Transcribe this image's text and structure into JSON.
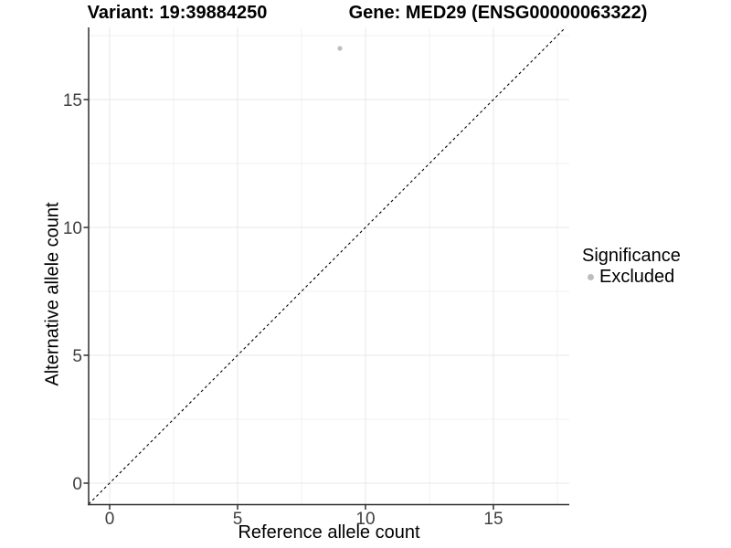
{
  "figure": {
    "background": "#ffffff"
  },
  "chart_data": {
    "type": "scatter",
    "titles": {
      "variant": "Variant: 19:39884250",
      "gene": "Gene: MED29 (ENSG00000063322)"
    },
    "xlabel": "Reference allele count",
    "ylabel": "Alternative allele count",
    "x_ticks": [
      0,
      5,
      10,
      15
    ],
    "y_ticks": [
      0,
      5,
      10,
      15
    ],
    "xlim": [
      -0.85,
      17.95
    ],
    "ylim": [
      -0.85,
      17.85
    ],
    "grid": {
      "major_color": "#e7e7e7",
      "minor_color": "#f2f2f2",
      "minor_offset": 2.5
    },
    "points": [
      {
        "x": 9,
        "y": 17,
        "significance": "Excluded",
        "color": "#bdbdbd"
      }
    ],
    "reference_line": {
      "slope": 1,
      "intercept": 0,
      "style": "dashed",
      "color": "#000000"
    },
    "legend": {
      "title": "Significance",
      "position": "right",
      "entries": [
        {
          "label": "Excluded",
          "color": "#bdbdbd",
          "marker": "circle"
        }
      ]
    },
    "axis_color": "#2f2f2f",
    "tick_label_color": "#404040"
  }
}
